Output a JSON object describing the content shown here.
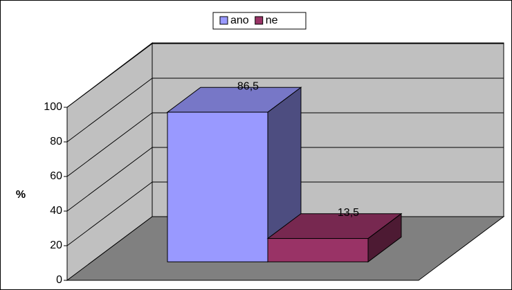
{
  "chart_data": {
    "type": "bar",
    "ylabel": "%",
    "categories": [
      null
    ],
    "series": [
      {
        "name": "ano",
        "color": "#9999ff",
        "values": [
          86.5
        ],
        "value_labels": [
          "86,5"
        ]
      },
      {
        "name": "ne",
        "color": "#993366",
        "values": [
          13.5
        ],
        "value_labels": [
          "13,5"
        ]
      }
    ],
    "ylim": [
      0,
      100
    ],
    "yticks": [
      0,
      20,
      40,
      60,
      80,
      100
    ],
    "grid": true,
    "legend": "top"
  }
}
